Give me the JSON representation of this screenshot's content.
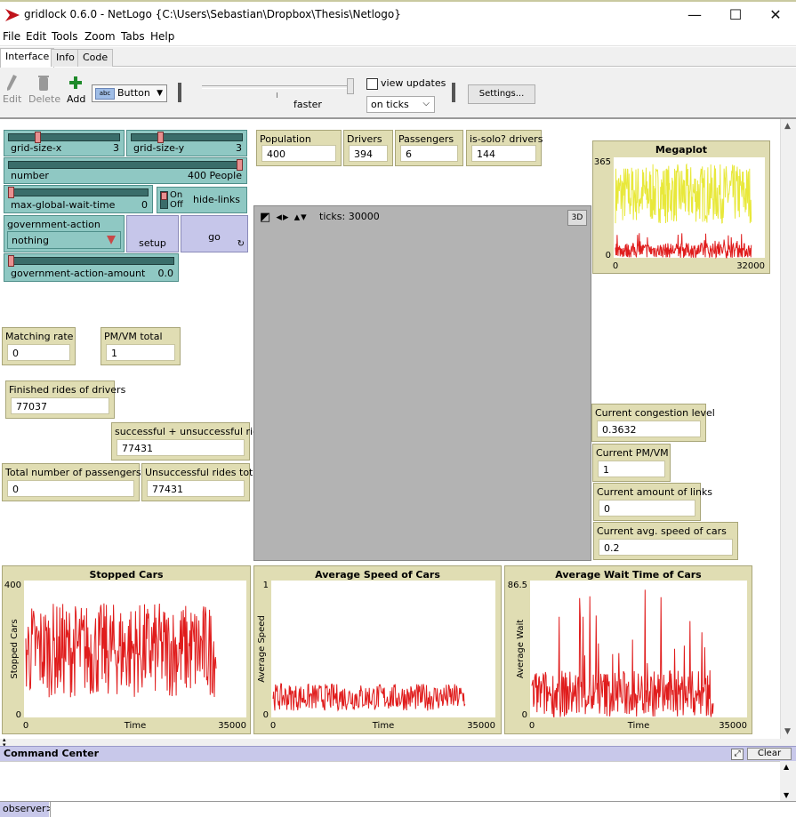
{
  "window": {
    "title": "gridlock 0.6.0 - NetLogo {C:\\Users\\Sebastian\\Dropbox\\Thesis\\Netlogo}",
    "minimize": "—",
    "maximize": "☐",
    "close": "✕"
  },
  "menu": [
    "File",
    "Edit",
    "Tools",
    "Zoom",
    "Tabs",
    "Help"
  ],
  "tabs": [
    "Interface",
    "Info",
    "Code"
  ],
  "toolbar": {
    "edit": "Edit",
    "delete": "Delete",
    "add": "Add",
    "widget_type": "Button",
    "speed_label": "faster",
    "view_updates": "view updates",
    "update_mode": "on ticks",
    "settings": "Settings..."
  },
  "sliders": {
    "grid_size_x": {
      "label": "grid-size-x",
      "value": "3",
      "fraction": 0.25
    },
    "grid_size_y": {
      "label": "grid-size-y",
      "value": "3",
      "fraction": 0.25
    },
    "number": {
      "label": "number",
      "value": "400 People",
      "fraction": 1.0
    },
    "max_global_wait_time": {
      "label": "max-global-wait-time",
      "value": "0",
      "fraction": 0.0
    },
    "government_action_amount": {
      "label": "government-action-amount",
      "value": "0.0",
      "fraction": 0.0
    }
  },
  "switch": {
    "label": "hide-links",
    "on": "On",
    "off": "Off"
  },
  "chooser": {
    "label": "government-action",
    "value": "nothing"
  },
  "buttons": {
    "setup": "setup",
    "go": "go",
    "forever_icon": "↻"
  },
  "monitors": {
    "population": {
      "label": "Population",
      "value": "400"
    },
    "drivers": {
      "label": "Drivers",
      "value": "394"
    },
    "passengers": {
      "label": "Passengers",
      "value": "6"
    },
    "is_solo": {
      "label": "is-solo? drivers",
      "value": "144"
    },
    "matching_rate": {
      "label": "Matching rate",
      "value": "0"
    },
    "pm_vm_total": {
      "label": "PM/VM total",
      "value": "1"
    },
    "finished_rides": {
      "label": "Finished rides of drivers",
      "value": "77037"
    },
    "success_unsuccess": {
      "label": "successful + unsuccessful rides",
      "value": "77431"
    },
    "total_passengers": {
      "label": "Total number of passengers",
      "value": "0"
    },
    "unsuccessful_total": {
      "label": "Unsuccessful rides total",
      "value": "77431"
    },
    "congestion": {
      "label": "Current congestion level",
      "value": "0.3632"
    },
    "current_pm_vm": {
      "label": "Current PM/VM",
      "value": "1"
    },
    "links": {
      "label": "Current amount of links",
      "value": "0"
    },
    "avg_speed": {
      "label": "Current avg. speed of cars",
      "value": "0.2"
    }
  },
  "view": {
    "ticks": "ticks: 30000",
    "btn_3d": "3D"
  },
  "chart_data": [
    {
      "type": "line",
      "title": "Megaplot",
      "xlim": [
        0,
        32000
      ],
      "ylim": [
        0,
        365
      ],
      "x_tick_labels": [
        "0",
        "32000"
      ],
      "y_tick_labels": [
        "0",
        "365"
      ],
      "xlabel": "",
      "ylabel": "",
      "series": [
        {
          "color": "#e8e83a"
        },
        {
          "color": "#e01c1c"
        }
      ]
    },
    {
      "type": "line",
      "title": "Stopped Cars",
      "xlim": [
        0,
        35000
      ],
      "ylim": [
        0,
        400
      ],
      "x_tick_labels": [
        "0",
        "35000"
      ],
      "y_tick_labels": [
        "0",
        "400"
      ],
      "xlabel": "Time",
      "ylabel": "Stopped Cars",
      "series": [
        {
          "color": "#e01c1c"
        }
      ]
    },
    {
      "type": "line",
      "title": "Average Speed of Cars",
      "xlim": [
        0,
        35000
      ],
      "ylim": [
        0,
        1
      ],
      "x_tick_labels": [
        "0",
        "35000"
      ],
      "y_tick_labels": [
        "0",
        "1"
      ],
      "xlabel": "Time",
      "ylabel": "Average Speed",
      "series": [
        {
          "color": "#e01c1c"
        }
      ]
    },
    {
      "type": "line",
      "title": "Average Wait Time of Cars",
      "xlim": [
        0,
        35000
      ],
      "ylim": [
        0,
        86.5
      ],
      "x_tick_labels": [
        "0",
        "35000"
      ],
      "y_tick_labels": [
        "0",
        "86.5"
      ],
      "xlabel": "Time",
      "ylabel": "Average Wait",
      "series": [
        {
          "color": "#e01c1c"
        }
      ]
    }
  ],
  "command_center": {
    "title": "Command Center",
    "clear": "Clear",
    "agent": "observer>",
    "input_value": ""
  }
}
